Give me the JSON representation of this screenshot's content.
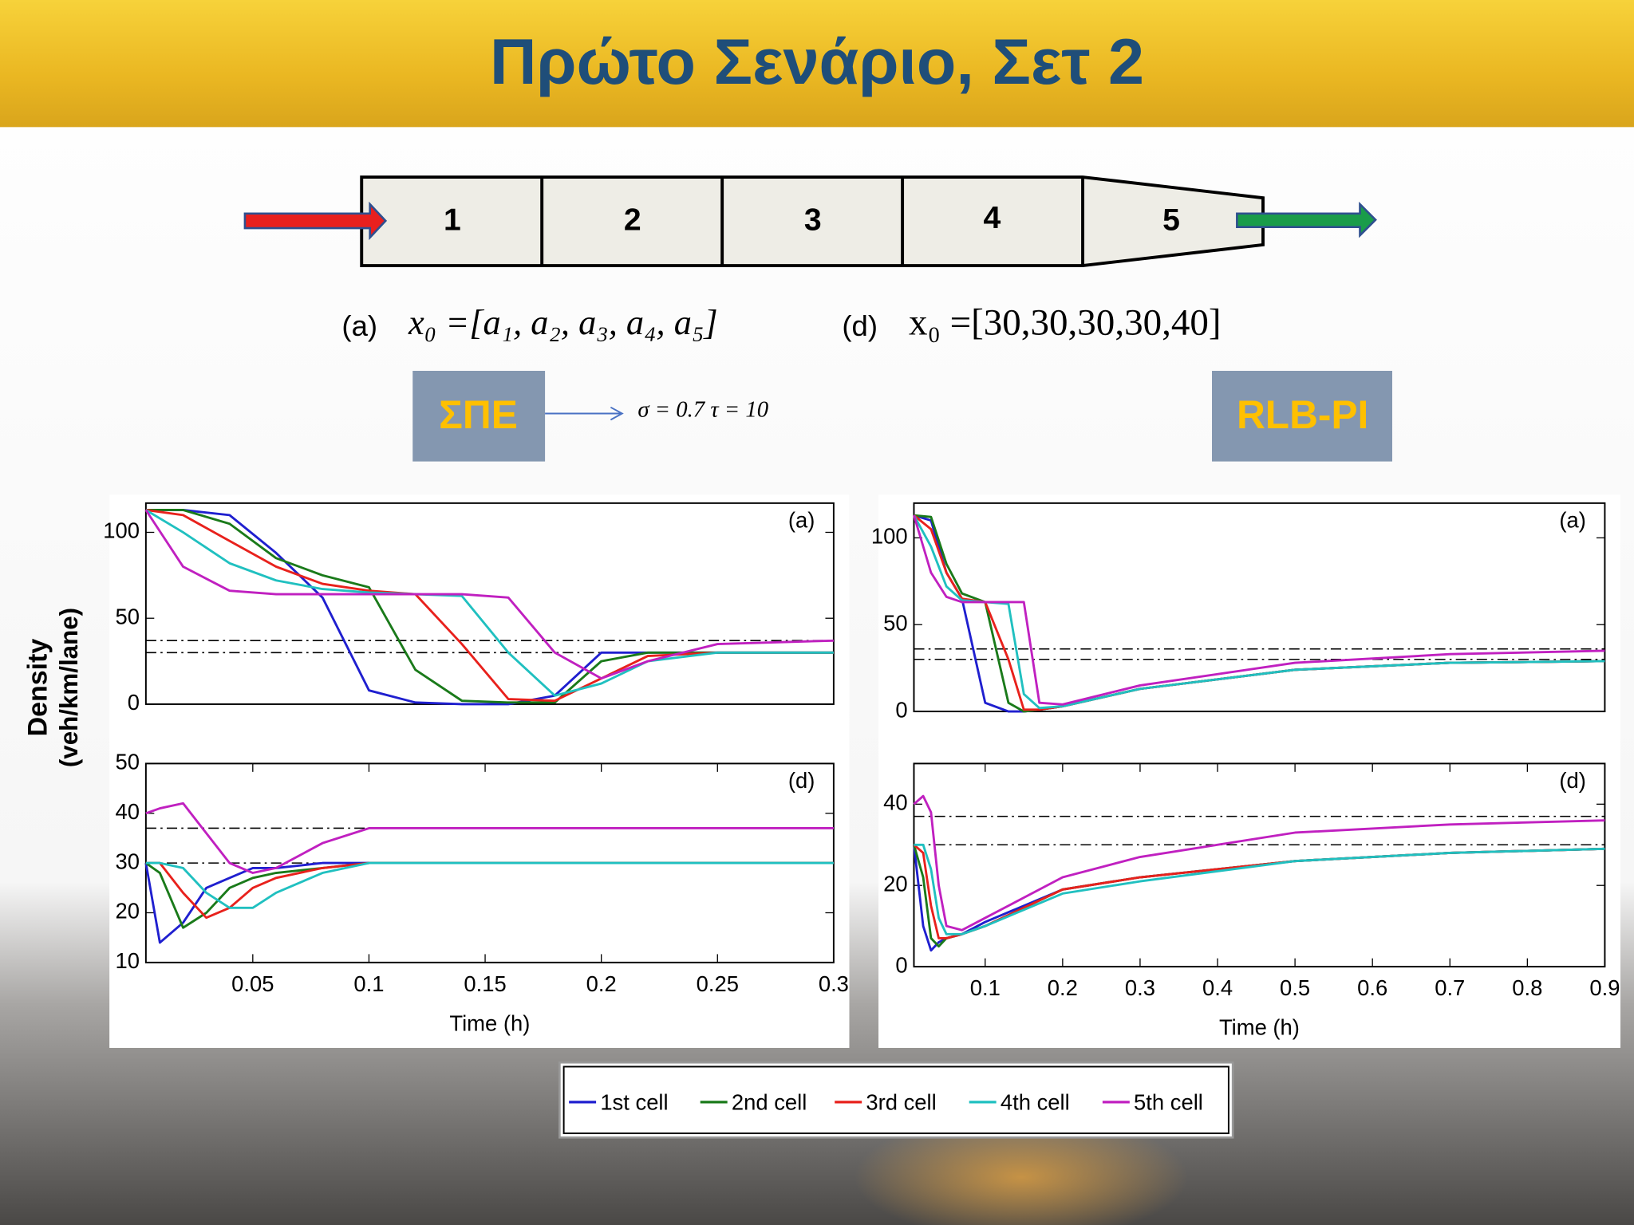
{
  "title": "Πρώτο Σενάριο, Σετ 2",
  "diagram": {
    "cells": [
      "1",
      "2",
      "3",
      "4",
      "5"
    ]
  },
  "formulas": [
    {
      "label": "(a)",
      "expr": "x₀ =[a₁, a₂, a₃, a₄, a₅]"
    },
    {
      "label": "(d)",
      "expr": "x₀ =[30,30,30,30,40]"
    }
  ],
  "methods": [
    {
      "label": "ΣΠΕ",
      "params": "σ = 0.7   τ = 10"
    },
    {
      "label": "RLB-PI"
    }
  ],
  "y_axis_label": [
    "Density",
    "(veh/km/lane)"
  ],
  "chart_data": [
    {
      "type": "line",
      "annotation": "(a)",
      "xlim": [
        0.004,
        0.3
      ],
      "ylim": [
        0,
        117
      ],
      "yticks": [
        0,
        50,
        100
      ],
      "reference_lines": [
        37,
        30
      ],
      "x": [
        0.004,
        0.02,
        0.04,
        0.06,
        0.08,
        0.1,
        0.12,
        0.14,
        0.16,
        0.18,
        0.2,
        0.22,
        0.25,
        0.3
      ],
      "series": [
        {
          "name": "1st cell",
          "color": "#1f1fcf",
          "values": [
            113,
            113,
            110,
            88,
            62,
            8,
            1,
            0,
            0,
            5,
            30,
            30,
            30,
            30
          ]
        },
        {
          "name": "2nd cell",
          "color": "#1a7a1a",
          "values": [
            113,
            113,
            105,
            85,
            75,
            68,
            20,
            2,
            1,
            1,
            25,
            30,
            30,
            30
          ]
        },
        {
          "name": "3rd cell",
          "color": "#e8211c",
          "values": [
            113,
            110,
            95,
            80,
            70,
            66,
            64,
            35,
            3,
            2,
            15,
            28,
            30,
            30
          ]
        },
        {
          "name": "4th cell",
          "color": "#20c0c0",
          "values": [
            113,
            100,
            82,
            72,
            67,
            65,
            64,
            63,
            30,
            5,
            12,
            25,
            30,
            30
          ]
        },
        {
          "name": "5th cell",
          "color": "#c020c0",
          "values": [
            113,
            80,
            66,
            64,
            64,
            64,
            64,
            64,
            62,
            30,
            15,
            25,
            35,
            37
          ]
        }
      ]
    },
    {
      "type": "line",
      "annotation": "(d)",
      "xlabel": "Time (h)",
      "xlim": [
        0.004,
        0.3
      ],
      "ylim": [
        10,
        50
      ],
      "yticks": [
        10,
        20,
        30,
        40,
        50
      ],
      "xticks": [
        0.05,
        0.1,
        0.15,
        0.2,
        0.25,
        0.3
      ],
      "reference_lines": [
        37,
        30
      ],
      "x": [
        0.004,
        0.01,
        0.02,
        0.03,
        0.04,
        0.05,
        0.06,
        0.08,
        0.1,
        0.15,
        0.2,
        0.3
      ],
      "series": [
        {
          "color": "#1f1fcf",
          "values": [
            30,
            14,
            18,
            25,
            27,
            29,
            29,
            30,
            30,
            30,
            30,
            30
          ]
        },
        {
          "color": "#1a7a1a",
          "values": [
            30,
            28,
            17,
            20,
            25,
            27,
            28,
            29,
            30,
            30,
            30,
            30
          ]
        },
        {
          "color": "#e8211c",
          "values": [
            30,
            30,
            24,
            19,
            21,
            25,
            27,
            29,
            30,
            30,
            30,
            30
          ]
        },
        {
          "color": "#20c0c0",
          "values": [
            30,
            30,
            29,
            24,
            21,
            21,
            24,
            28,
            30,
            30,
            30,
            30
          ]
        },
        {
          "color": "#c020c0",
          "values": [
            40,
            41,
            42,
            36,
            30,
            28,
            29,
            34,
            37,
            37,
            37,
            37
          ]
        }
      ]
    },
    {
      "type": "line",
      "annotation": "(a)",
      "xlim": [
        0.008,
        0.9
      ],
      "ylim": [
        0,
        120
      ],
      "yticks": [
        0,
        50,
        100
      ],
      "reference_lines": [
        36,
        30
      ],
      "x": [
        0.008,
        0.03,
        0.05,
        0.07,
        0.1,
        0.13,
        0.15,
        0.17,
        0.2,
        0.3,
        0.5,
        0.7,
        0.9
      ],
      "series": [
        {
          "color": "#1f1fcf",
          "values": [
            113,
            110,
            80,
            65,
            5,
            0,
            0,
            1,
            3,
            13,
            24,
            28,
            29
          ]
        },
        {
          "color": "#1a7a1a",
          "values": [
            113,
            112,
            85,
            68,
            63,
            5,
            0,
            1,
            3,
            13,
            24,
            28,
            29
          ]
        },
        {
          "color": "#e8211c",
          "values": [
            113,
            105,
            80,
            65,
            63,
            30,
            1,
            1,
            3,
            13,
            24,
            28,
            29
          ]
        },
        {
          "color": "#20c0c0",
          "values": [
            113,
            95,
            72,
            64,
            63,
            62,
            10,
            2,
            3,
            13,
            24,
            28,
            29
          ]
        },
        {
          "color": "#c020c0",
          "values": [
            113,
            80,
            66,
            63,
            63,
            63,
            63,
            5,
            4,
            15,
            28,
            33,
            35
          ]
        }
      ]
    },
    {
      "type": "line",
      "annotation": "(d)",
      "xlabel": "Time (h)",
      "xlim": [
        0.008,
        0.9
      ],
      "ylim": [
        0,
        50
      ],
      "yticks": [
        0,
        20,
        40
      ],
      "xticks": [
        0.1,
        0.2,
        0.3,
        0.4,
        0.5,
        0.6,
        0.7,
        0.8,
        0.9
      ],
      "reference_lines": [
        37,
        30
      ],
      "x": [
        0.008,
        0.02,
        0.03,
        0.04,
        0.05,
        0.07,
        0.1,
        0.2,
        0.3,
        0.5,
        0.7,
        0.9
      ],
      "series": [
        {
          "color": "#1f1fcf",
          "values": [
            30,
            10,
            4,
            6,
            7,
            8,
            11,
            19,
            22,
            26,
            28,
            29
          ]
        },
        {
          "color": "#1a7a1a",
          "values": [
            30,
            22,
            7,
            5,
            7,
            8,
            10,
            19,
            22,
            26,
            28,
            29
          ]
        },
        {
          "color": "#e8211c",
          "values": [
            30,
            28,
            15,
            7,
            7,
            8,
            10,
            19,
            22,
            26,
            28,
            29
          ]
        },
        {
          "color": "#20c0c0",
          "values": [
            30,
            30,
            24,
            12,
            8,
            8,
            10,
            18,
            21,
            26,
            28,
            29
          ]
        },
        {
          "color": "#c020c0",
          "values": [
            40,
            42,
            38,
            20,
            10,
            9,
            12,
            22,
            27,
            33,
            35,
            36
          ]
        }
      ]
    }
  ]
}
